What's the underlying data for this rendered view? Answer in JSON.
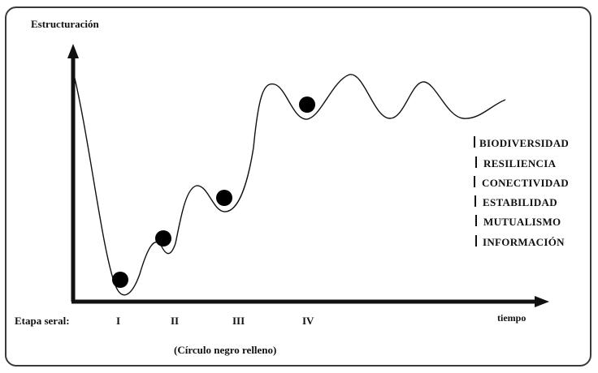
{
  "y_axis_label": "Estructuración",
  "x_axis_label": "tiempo",
  "stage_prefix": "Etapa seral:",
  "stages": [
    "I",
    "II",
    "III",
    "IV"
  ],
  "marker_note": "(Círculo negro relleno)",
  "properties": [
    "BIODIVERSIDAD",
    "RESILIENCIA",
    "CONECTIVIDAD",
    "ESTABILIDAD",
    "MUTUALISMO",
    "INFORMACIÓN"
  ],
  "colors": {
    "ink": "#111111",
    "frame": "#3a3a3a",
    "background": "#ffffff"
  }
}
